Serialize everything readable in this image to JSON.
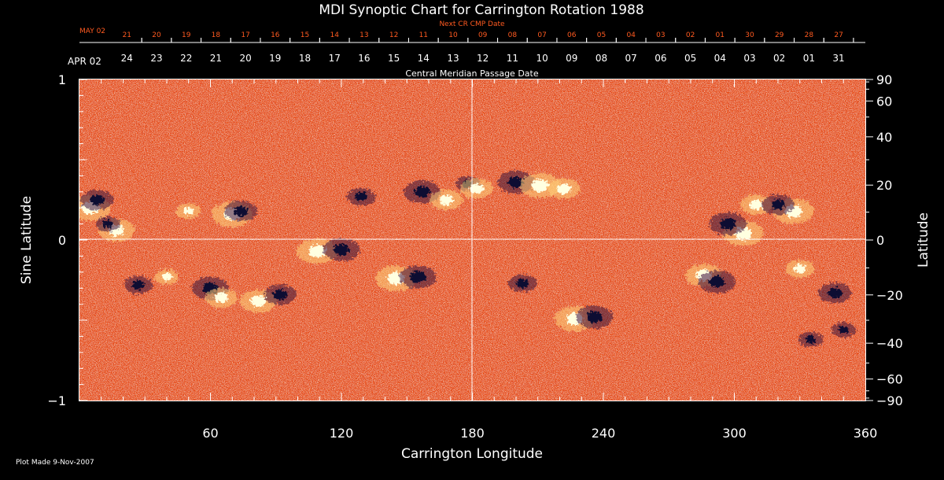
{
  "chart_data": {
    "type": "heatmap",
    "title": "MDI Synoptic Chart for Carrington Rotation 1988",
    "xlabel": "Carrington Longitude",
    "ylabel_left": "Sine Latitude",
    "ylabel_right": "Latitude",
    "xlim": [
      0,
      360
    ],
    "ylim": [
      -1,
      1
    ],
    "x_ticks": [
      60,
      120,
      180,
      240,
      300,
      360
    ],
    "y_ticks_left": [
      {
        "value": 1,
        "label": "1"
      },
      {
        "value": 0,
        "label": "0"
      },
      {
        "value": -1,
        "label": "−1"
      }
    ],
    "y_ticks_right": [
      90,
      60,
      40,
      20,
      0,
      -20,
      -40,
      -60,
      -90
    ],
    "top_axis_next": {
      "title": "Next CR CMP Date",
      "start_label": "MAY 02",
      "labels": [
        "21",
        "20",
        "19",
        "18",
        "17",
        "16",
        "15",
        "14",
        "13",
        "12",
        "11",
        "10",
        "09",
        "08",
        "07",
        "06",
        "05",
        "04",
        "03",
        "02",
        "01",
        "30",
        "29",
        "28",
        "27"
      ]
    },
    "top_axis_current": {
      "title": "Central Meridian Passage Date",
      "start_label": "APR 02",
      "labels": [
        "24",
        "23",
        "22",
        "21",
        "20",
        "19",
        "18",
        "17",
        "16",
        "15",
        "14",
        "13",
        "12",
        "11",
        "10",
        "09",
        "08",
        "07",
        "06",
        "05",
        "04",
        "03",
        "02",
        "01",
        "31"
      ]
    },
    "colors": {
      "background": "#000000",
      "map_base": "#e84a10",
      "positive_flux": "#ffffe0",
      "negative_flux": "#0a0830",
      "next_axis": "#ff5a20",
      "text": "#ffffff"
    },
    "features": [
      {
        "lon": 5,
        "sinlat": 0.2,
        "pol": 1,
        "strength": 1.0
      },
      {
        "lon": 8,
        "sinlat": 0.25,
        "pol": -1,
        "strength": 0.8
      },
      {
        "lon": 17,
        "sinlat": 0.06,
        "pol": 1,
        "strength": 0.9
      },
      {
        "lon": 13,
        "sinlat": 0.1,
        "pol": -1,
        "strength": 0.6
      },
      {
        "lon": 27,
        "sinlat": -0.28,
        "pol": -1,
        "strength": 0.7
      },
      {
        "lon": 40,
        "sinlat": -0.23,
        "pol": 1,
        "strength": 0.6
      },
      {
        "lon": 50,
        "sinlat": 0.18,
        "pol": 1,
        "strength": 0.6
      },
      {
        "lon": 60,
        "sinlat": -0.3,
        "pol": -1,
        "strength": 0.9
      },
      {
        "lon": 65,
        "sinlat": -0.36,
        "pol": 1,
        "strength": 0.8
      },
      {
        "lon": 70,
        "sinlat": 0.16,
        "pol": 1,
        "strength": 1.0
      },
      {
        "lon": 74,
        "sinlat": 0.18,
        "pol": -1,
        "strength": 0.8
      },
      {
        "lon": 82,
        "sinlat": -0.38,
        "pol": 1,
        "strength": 0.9
      },
      {
        "lon": 92,
        "sinlat": -0.34,
        "pol": -1,
        "strength": 0.8
      },
      {
        "lon": 109,
        "sinlat": -0.07,
        "pol": 1,
        "strength": 1.0
      },
      {
        "lon": 120,
        "sinlat": -0.06,
        "pol": -1,
        "strength": 0.9
      },
      {
        "lon": 129,
        "sinlat": 0.27,
        "pol": -1,
        "strength": 0.7
      },
      {
        "lon": 145,
        "sinlat": -0.24,
        "pol": 1,
        "strength": 1.0
      },
      {
        "lon": 155,
        "sinlat": -0.23,
        "pol": -1,
        "strength": 0.9
      },
      {
        "lon": 157,
        "sinlat": 0.3,
        "pol": -1,
        "strength": 0.9
      },
      {
        "lon": 168,
        "sinlat": 0.25,
        "pol": 1,
        "strength": 0.8
      },
      {
        "lon": 178,
        "sinlat": 0.35,
        "pol": -1,
        "strength": 0.6
      },
      {
        "lon": 182,
        "sinlat": 0.32,
        "pol": 1,
        "strength": 0.8
      },
      {
        "lon": 200,
        "sinlat": 0.36,
        "pol": -1,
        "strength": 0.9
      },
      {
        "lon": 211,
        "sinlat": 0.34,
        "pol": 1,
        "strength": 1.0
      },
      {
        "lon": 222,
        "sinlat": 0.32,
        "pol": 1,
        "strength": 0.8
      },
      {
        "lon": 203,
        "sinlat": -0.27,
        "pol": -1,
        "strength": 0.7
      },
      {
        "lon": 227,
        "sinlat": -0.49,
        "pol": 1,
        "strength": 1.0
      },
      {
        "lon": 236,
        "sinlat": -0.48,
        "pol": -1,
        "strength": 0.9
      },
      {
        "lon": 304,
        "sinlat": 0.04,
        "pol": 1,
        "strength": 1.0
      },
      {
        "lon": 297,
        "sinlat": 0.1,
        "pol": -1,
        "strength": 0.9
      },
      {
        "lon": 310,
        "sinlat": 0.22,
        "pol": 1,
        "strength": 0.8
      },
      {
        "lon": 327,
        "sinlat": 0.18,
        "pol": 1,
        "strength": 1.0
      },
      {
        "lon": 320,
        "sinlat": 0.22,
        "pol": -1,
        "strength": 0.8
      },
      {
        "lon": 286,
        "sinlat": -0.22,
        "pol": 1,
        "strength": 0.9
      },
      {
        "lon": 292,
        "sinlat": -0.26,
        "pol": -1,
        "strength": 0.9
      },
      {
        "lon": 330,
        "sinlat": -0.18,
        "pol": 1,
        "strength": 0.7
      },
      {
        "lon": 346,
        "sinlat": -0.33,
        "pol": -1,
        "strength": 0.8
      },
      {
        "lon": 350,
        "sinlat": -0.56,
        "pol": -1,
        "strength": 0.6
      },
      {
        "lon": 335,
        "sinlat": -0.62,
        "pol": -1,
        "strength": 0.6
      }
    ]
  },
  "footer": {
    "plot_made": "Plot Made  9-Nov-2007"
  }
}
